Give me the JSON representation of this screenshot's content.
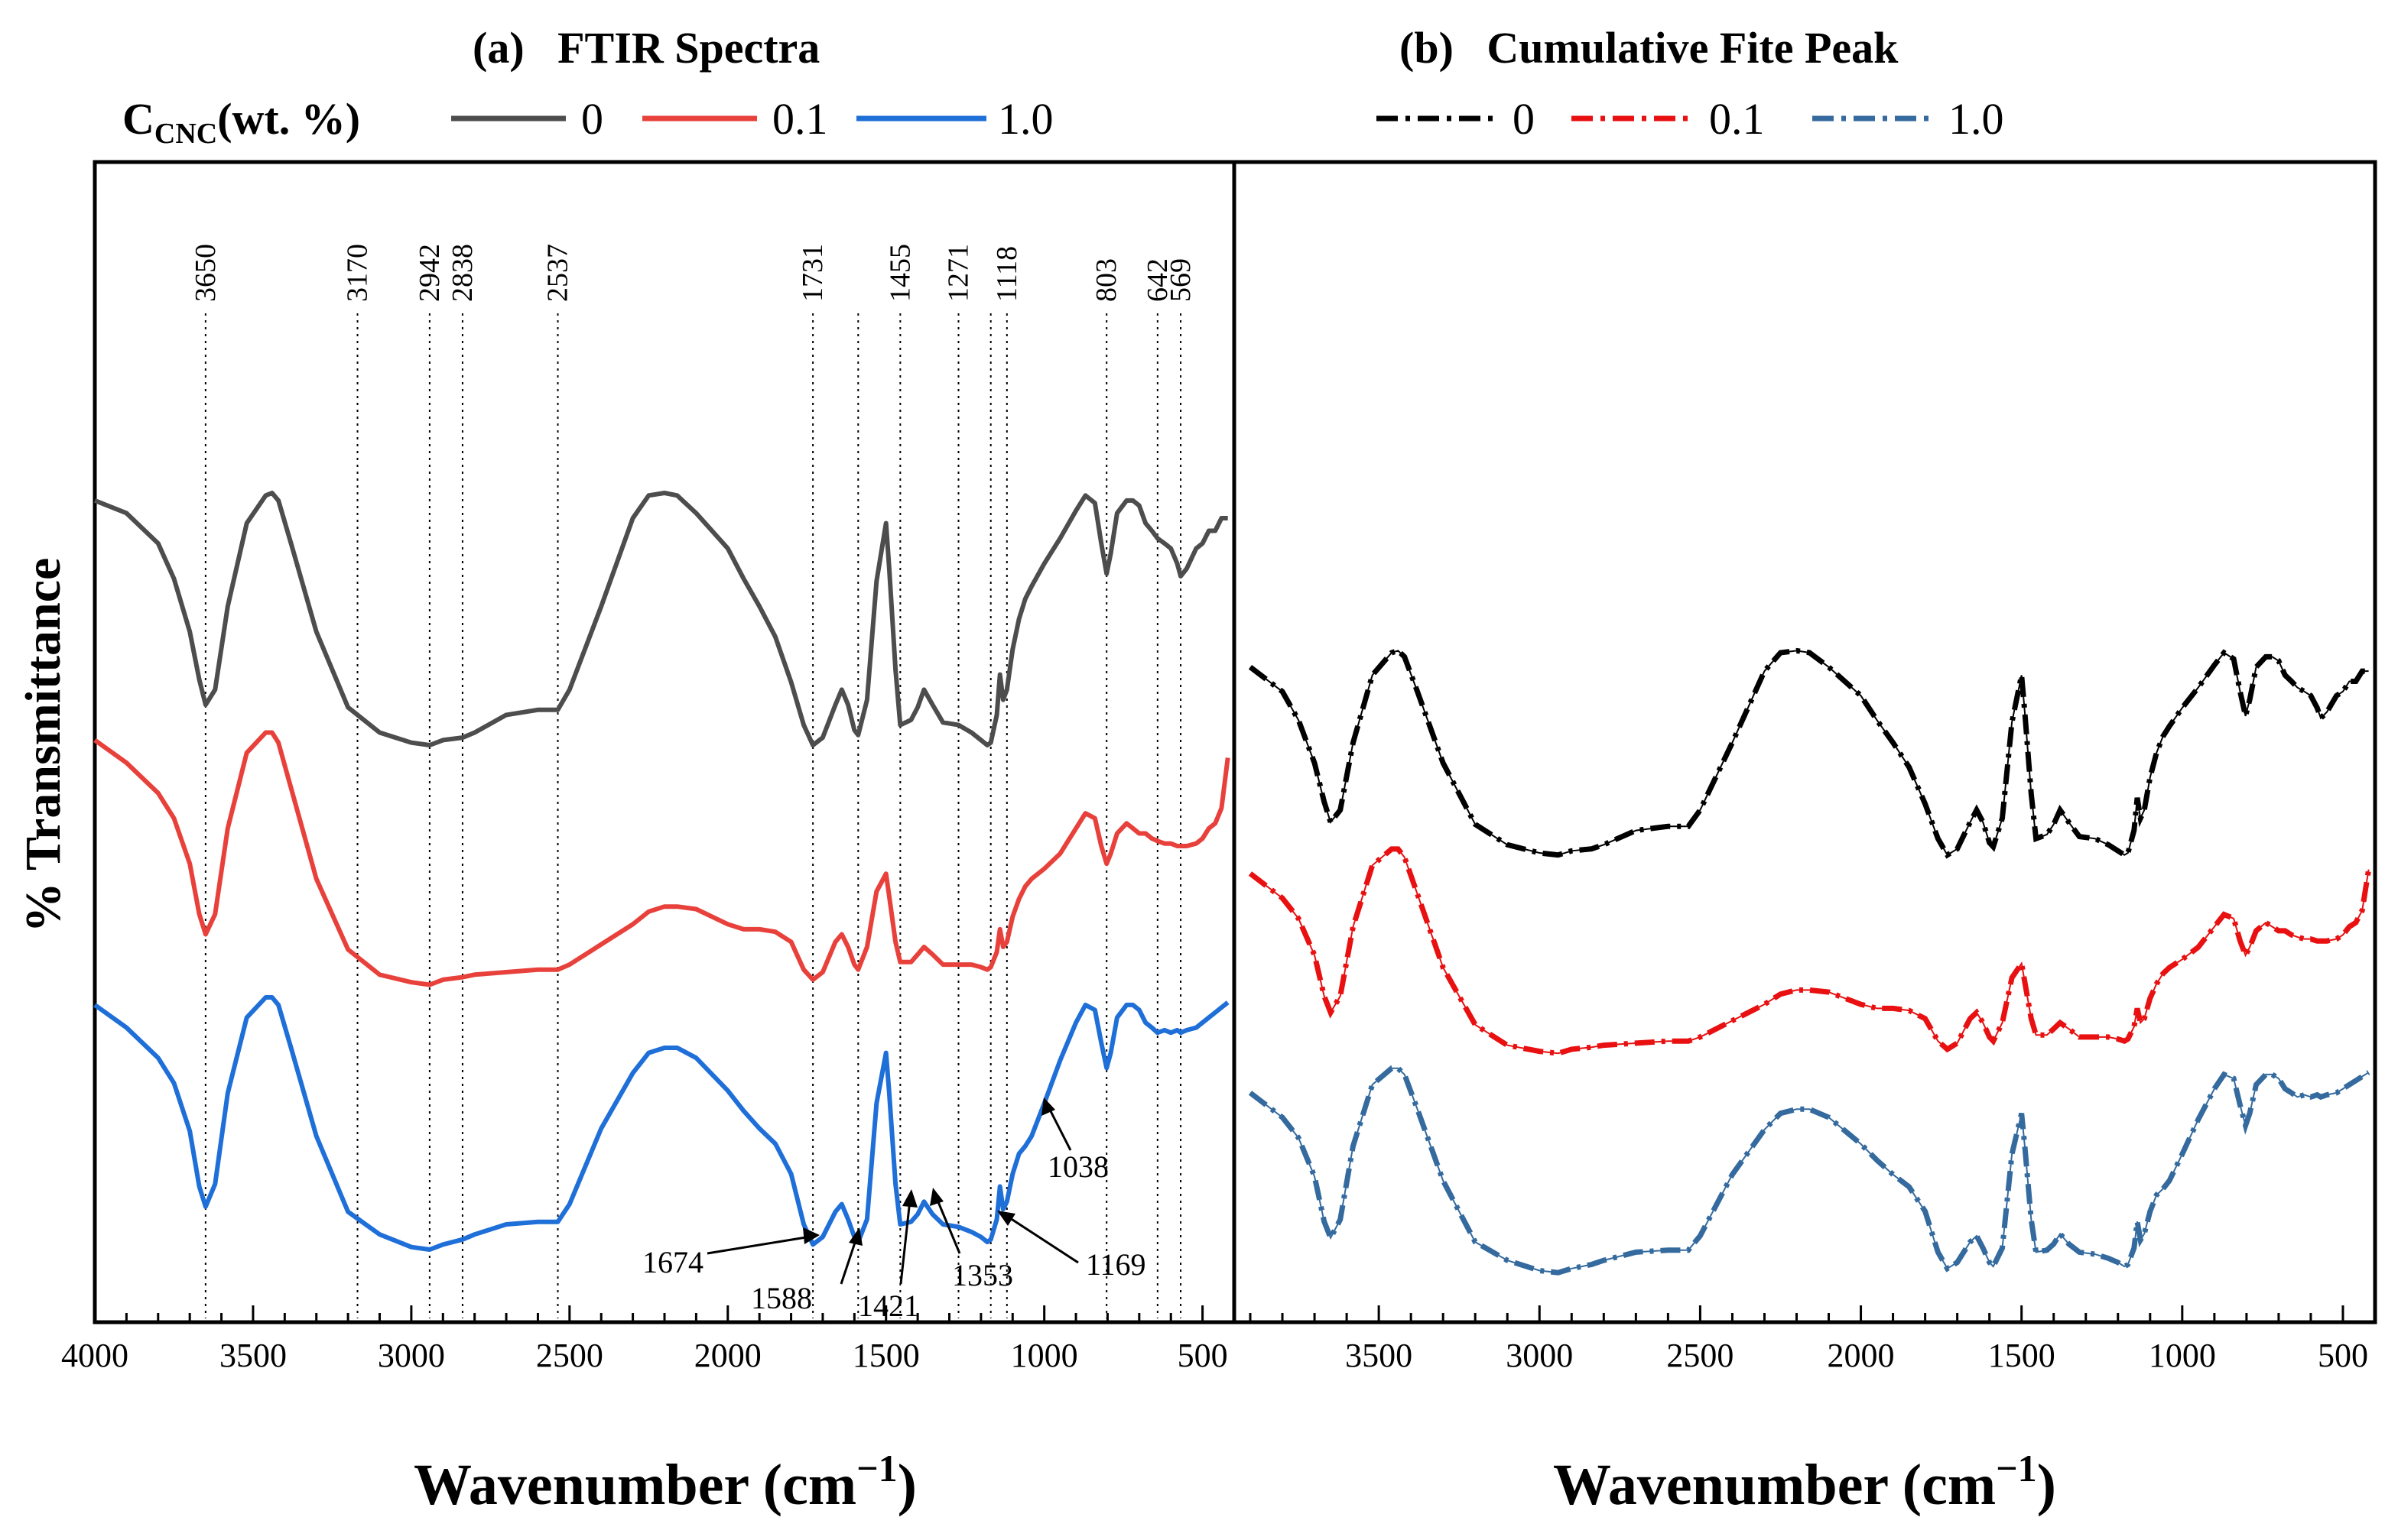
{
  "chart_data": [
    {
      "type": "line",
      "panel": "a",
      "title": "(a)   FTIR Spectra",
      "legend_title_main": "C",
      "legend_title_sub": "CNC",
      "legend_title_rest": "(wt. %)",
      "xlabel": "Wavenumber (cm",
      "xlabel_sup": "−1",
      "xlabel_end": ")",
      "ylabel": "% Transmittance",
      "xlim": [
        4000,
        400
      ],
      "xticks": [
        "4000",
        "3500",
        "3000",
        "2500",
        "2000",
        "1500",
        "1000",
        "500"
      ],
      "series": [
        {
          "name": "0",
          "color": "#4d4d4d",
          "offset": 2.0,
          "x": [
            4000,
            3900,
            3800,
            3750,
            3700,
            3670,
            3650,
            3620,
            3580,
            3520,
            3460,
            3440,
            3420,
            3380,
            3300,
            3200,
            3100,
            3000,
            2942,
            2900,
            2838,
            2800,
            2700,
            2600,
            2537,
            2500,
            2400,
            2300,
            2250,
            2200,
            2160,
            2100,
            2000,
            1950,
            1900,
            1850,
            1800,
            1760,
            1731,
            1700,
            1660,
            1640,
            1620,
            1600,
            1588,
            1560,
            1530,
            1500,
            1490,
            1470,
            1455,
            1421,
            1400,
            1380,
            1353,
            1320,
            1271,
            1230,
            1200,
            1180,
            1169,
            1150,
            1140,
            1130,
            1118,
            1100,
            1080,
            1060,
            1040,
            1000,
            950,
            900,
            870,
            840,
            820,
            803,
            790,
            770,
            740,
            720,
            700,
            680,
            660,
            642,
            620,
            600,
            580,
            569,
            550,
            520,
            500,
            480,
            460,
            440,
            420
          ],
          "y": [
            0.97,
            0.92,
            0.8,
            0.66,
            0.45,
            0.26,
            0.16,
            0.22,
            0.55,
            0.88,
            0.99,
            1.0,
            0.97,
            0.8,
            0.45,
            0.15,
            0.05,
            0.01,
            0.0,
            0.02,
            0.03,
            0.05,
            0.12,
            0.14,
            0.14,
            0.22,
            0.55,
            0.9,
            0.99,
            1.0,
            0.99,
            0.92,
            0.78,
            0.66,
            0.55,
            0.43,
            0.25,
            0.08,
            0.0,
            0.03,
            0.16,
            0.22,
            0.16,
            0.06,
            0.04,
            0.18,
            0.65,
            0.88,
            0.7,
            0.3,
            0.08,
            0.1,
            0.15,
            0.22,
            0.16,
            0.09,
            0.08,
            0.05,
            0.02,
            0.0,
            0.01,
            0.12,
            0.28,
            0.18,
            0.22,
            0.38,
            0.5,
            0.58,
            0.63,
            0.72,
            0.82,
            0.93,
            0.99,
            0.96,
            0.8,
            0.68,
            0.76,
            0.92,
            0.97,
            0.97,
            0.95,
            0.88,
            0.85,
            0.82,
            0.8,
            0.78,
            0.72,
            0.67,
            0.7,
            0.78,
            0.8,
            0.85,
            0.85,
            0.9,
            0.9
          ]
        },
        {
          "name": "0.1",
          "color": "#e8413b",
          "offset": 1.05,
          "x": [
            4000,
            3900,
            3800,
            3750,
            3700,
            3670,
            3650,
            3620,
            3580,
            3520,
            3460,
            3440,
            3420,
            3380,
            3300,
            3200,
            3100,
            3000,
            2942,
            2900,
            2838,
            2800,
            2700,
            2600,
            2537,
            2500,
            2400,
            2300,
            2250,
            2200,
            2160,
            2100,
            2000,
            1950,
            1900,
            1850,
            1800,
            1760,
            1731,
            1700,
            1660,
            1640,
            1620,
            1600,
            1588,
            1560,
            1530,
            1500,
            1490,
            1470,
            1455,
            1421,
            1400,
            1380,
            1353,
            1320,
            1271,
            1230,
            1200,
            1180,
            1169,
            1150,
            1140,
            1130,
            1118,
            1100,
            1080,
            1060,
            1040,
            1000,
            950,
            900,
            870,
            840,
            820,
            803,
            790,
            770,
            740,
            720,
            700,
            680,
            660,
            642,
            620,
            600,
            580,
            569,
            550,
            520,
            500,
            480,
            460,
            440,
            420
          ],
          "y": [
            0.97,
            0.88,
            0.76,
            0.66,
            0.48,
            0.28,
            0.2,
            0.28,
            0.62,
            0.92,
            1.0,
            1.0,
            0.96,
            0.78,
            0.42,
            0.14,
            0.04,
            0.01,
            0.0,
            0.02,
            0.03,
            0.04,
            0.05,
            0.06,
            0.06,
            0.08,
            0.16,
            0.24,
            0.29,
            0.31,
            0.31,
            0.3,
            0.24,
            0.22,
            0.22,
            0.21,
            0.17,
            0.06,
            0.02,
            0.05,
            0.17,
            0.2,
            0.15,
            0.08,
            0.06,
            0.15,
            0.37,
            0.44,
            0.35,
            0.17,
            0.09,
            0.09,
            0.12,
            0.15,
            0.12,
            0.08,
            0.08,
            0.08,
            0.07,
            0.06,
            0.07,
            0.13,
            0.22,
            0.15,
            0.17,
            0.27,
            0.34,
            0.39,
            0.42,
            0.46,
            0.52,
            0.62,
            0.68,
            0.66,
            0.55,
            0.48,
            0.52,
            0.6,
            0.64,
            0.62,
            0.6,
            0.6,
            0.58,
            0.57,
            0.56,
            0.56,
            0.55,
            0.55,
            0.55,
            0.56,
            0.58,
            0.62,
            0.64,
            0.7,
            0.9
          ]
        },
        {
          "name": "1.0",
          "color": "#1f6fd8",
          "offset": 0.0,
          "x": [
            4000,
            3900,
            3800,
            3750,
            3700,
            3670,
            3650,
            3620,
            3580,
            3520,
            3460,
            3440,
            3420,
            3380,
            3300,
            3200,
            3100,
            3000,
            2942,
            2900,
            2838,
            2800,
            2700,
            2600,
            2537,
            2500,
            2400,
            2300,
            2250,
            2200,
            2160,
            2100,
            2000,
            1950,
            1900,
            1850,
            1800,
            1760,
            1731,
            1700,
            1660,
            1640,
            1620,
            1600,
            1588,
            1560,
            1530,
            1500,
            1490,
            1470,
            1455,
            1421,
            1400,
            1380,
            1353,
            1320,
            1271,
            1230,
            1200,
            1180,
            1169,
            1150,
            1140,
            1130,
            1118,
            1100,
            1080,
            1060,
            1040,
            1000,
            950,
            900,
            870,
            840,
            820,
            803,
            790,
            770,
            740,
            720,
            700,
            680,
            660,
            642,
            620,
            600,
            580,
            569,
            550,
            520,
            500,
            480,
            460,
            440,
            420
          ],
          "y": [
            0.97,
            0.88,
            0.76,
            0.66,
            0.47,
            0.25,
            0.17,
            0.26,
            0.62,
            0.92,
            1.0,
            1.0,
            0.97,
            0.8,
            0.45,
            0.15,
            0.06,
            0.01,
            0.0,
            0.02,
            0.04,
            0.06,
            0.1,
            0.11,
            0.11,
            0.18,
            0.48,
            0.7,
            0.78,
            0.8,
            0.8,
            0.76,
            0.63,
            0.55,
            0.48,
            0.42,
            0.3,
            0.1,
            0.02,
            0.05,
            0.15,
            0.18,
            0.12,
            0.05,
            0.03,
            0.12,
            0.58,
            0.78,
            0.62,
            0.26,
            0.1,
            0.11,
            0.14,
            0.19,
            0.14,
            0.1,
            0.09,
            0.07,
            0.05,
            0.03,
            0.04,
            0.12,
            0.25,
            0.16,
            0.19,
            0.3,
            0.38,
            0.41,
            0.45,
            0.58,
            0.75,
            0.9,
            0.97,
            0.95,
            0.82,
            0.72,
            0.78,
            0.92,
            0.97,
            0.97,
            0.95,
            0.9,
            0.88,
            0.86,
            0.87,
            0.86,
            0.87,
            0.86,
            0.87,
            0.88,
            0.9,
            0.92,
            0.94,
            0.96,
            0.98
          ]
        }
      ],
      "peak_lines": [
        "3650",
        "3170",
        "2942",
        "2838",
        "2537",
        "1731",
        "1588",
        "1455",
        "1271",
        "1169",
        "1118",
        "803",
        "642",
        "569"
      ],
      "peak_line_positions": [
        3650,
        3170,
        2942,
        2838,
        2537,
        1731,
        1588,
        1455,
        1271,
        1169,
        1118,
        803,
        642,
        569
      ],
      "peak_labels": [
        {
          "text": "3650",
          "at": 3650
        },
        {
          "text": "3170",
          "at": 3170
        },
        {
          "text": "2942",
          "at": 2942
        },
        {
          "text": "2838",
          "at": 2838
        },
        {
          "text": "2537",
          "at": 2537
        },
        {
          "text": "1731",
          "at": 1731
        },
        {
          "text": "1455",
          "at": 1455
        },
        {
          "text": "1271",
          "at": 1271
        },
        {
          "text": "1118",
          "at": 1118
        },
        {
          "text": "803",
          "at": 803
        },
        {
          "text": "642",
          "at": 642
        },
        {
          "text": "569",
          "at": 569
        }
      ],
      "annotations": [
        "1674",
        "1588",
        "1421",
        "1353",
        "1169",
        "1038"
      ]
    },
    {
      "type": "line",
      "panel": "b",
      "title": "(b)   Cumulative Fite Peak",
      "xlabel": "Wavenumber (cm",
      "xlabel_sup": "−1",
      "xlabel_end": ")",
      "xlim": [
        3950,
        400
      ],
      "xticks": [
        "3500",
        "3000",
        "2500",
        "2000",
        "1500",
        "1000",
        "500"
      ],
      "line_style": "dash-dot",
      "series": [
        {
          "name": "0",
          "color": "#000000"
        },
        {
          "name": "0.1",
          "color": "#e81010"
        },
        {
          "name": "1.0",
          "color": "#346a9e"
        }
      ]
    }
  ]
}
